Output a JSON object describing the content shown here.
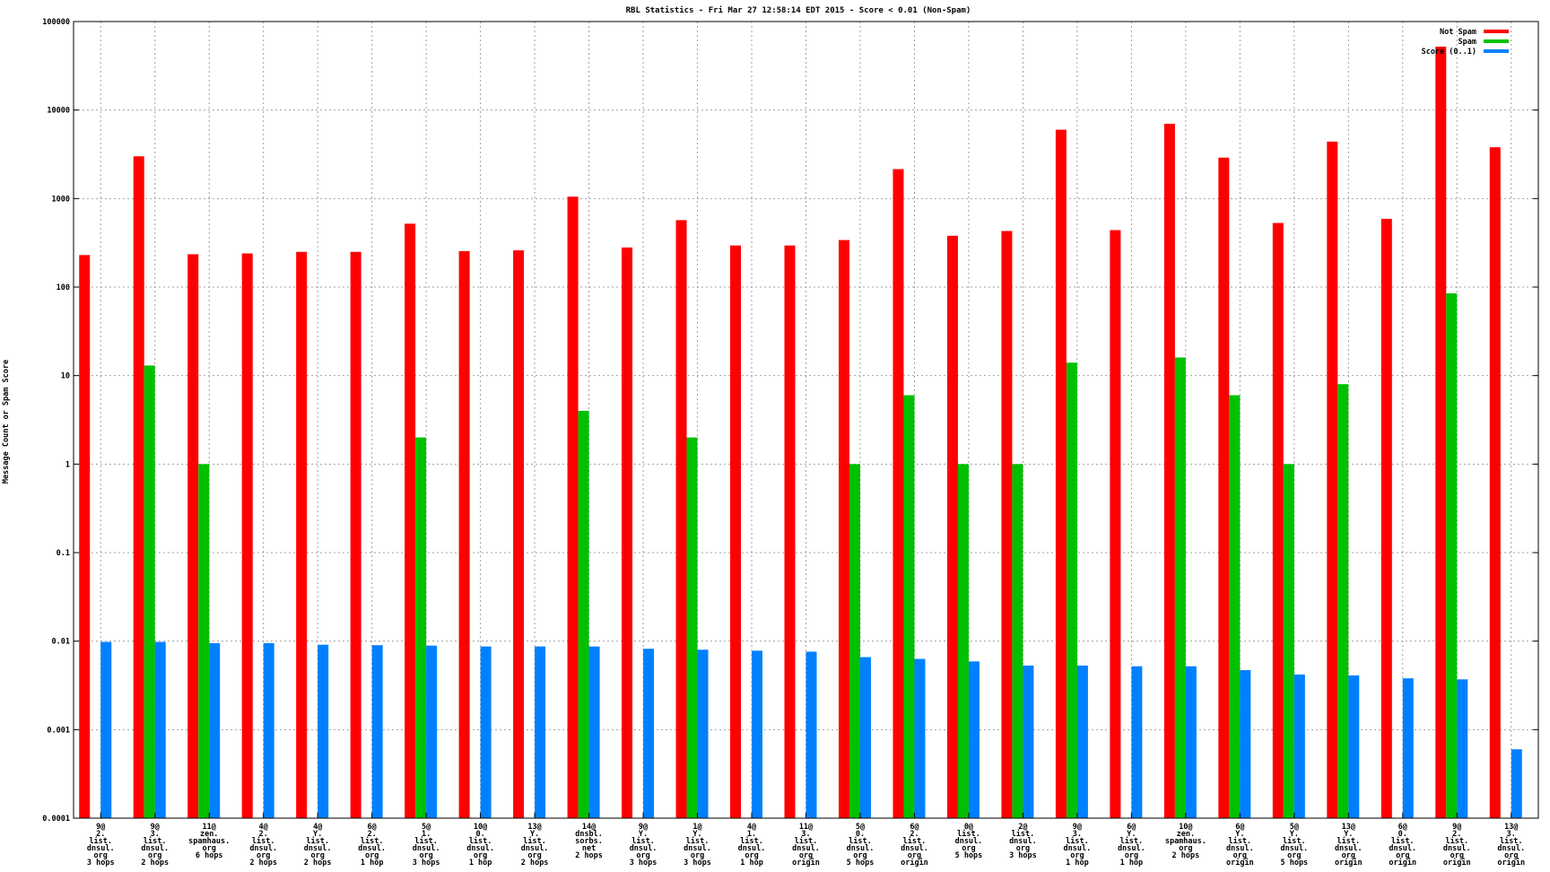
{
  "chart_data": {
    "type": "bar",
    "title": "RBL Statistics - Fri Mar 27 12:58:14 EDT 2015 - Score < 0.01 (Non-Spam)",
    "ylabel": "Message Count or Spam Score",
    "y_scale": "log",
    "ylim": [
      0.0001,
      100000
    ],
    "yticks": [
      "0.0001",
      "0.001",
      "0.01",
      "0.1",
      "1",
      "10",
      "100",
      "1000",
      "10000",
      "100000"
    ],
    "grid": true,
    "legend_position": "top-right",
    "categories": [
      [
        "9@",
        "2.",
        "list.",
        "dnsul.",
        "org",
        "3 hops"
      ],
      [
        "9@",
        "3.",
        "list.",
        "dnsul.",
        "org",
        "2 hops"
      ],
      [
        "11@",
        "zen.",
        "spamhaus.",
        "org",
        "6 hops"
      ],
      [
        "4@",
        "2.",
        "list.",
        "dnsul.",
        "org",
        "2 hops"
      ],
      [
        "4@",
        "Y.",
        "list.",
        "dnsul.",
        "org",
        "2 hops"
      ],
      [
        "6@",
        "2.",
        "list.",
        "dnsul.",
        "org",
        "1 hop"
      ],
      [
        "5@",
        "1.",
        "list.",
        "dnsul.",
        "org",
        "3 hops"
      ],
      [
        "10@",
        "0.",
        "list.",
        "dnsul.",
        "org",
        "1 hop"
      ],
      [
        "13@",
        "Y.",
        "list.",
        "dnsul.",
        "org",
        "2 hops"
      ],
      [
        "14@",
        "dnsbl.",
        "sorbs.",
        "net",
        "2 hops"
      ],
      [
        "9@",
        "Y.",
        "list.",
        "dnsul.",
        "org",
        "3 hops"
      ],
      [
        "1@",
        "Y.",
        "list.",
        "dnsul.",
        "org",
        "3 hops"
      ],
      [
        "4@",
        "1.",
        "list.",
        "dnsul.",
        "org",
        "1 hop"
      ],
      [
        "11@",
        "3.",
        "list.",
        "dnsul.",
        "org",
        "origin"
      ],
      [
        "5@",
        "0.",
        "list.",
        "dnsul.",
        "org",
        "5 hops"
      ],
      [
        "6@",
        "2.",
        "list.",
        "dnsul.",
        "org",
        "origin"
      ],
      [
        "0@",
        "list.",
        "dnsul.",
        "org",
        "5 hops"
      ],
      [
        "2@",
        "list.",
        "dnsul.",
        "org",
        "3 hops"
      ],
      [
        "9@",
        "3.",
        "list.",
        "dnsul.",
        "org",
        "1 hop"
      ],
      [
        "6@",
        "Y.",
        "list.",
        "dnsul.",
        "org",
        "1 hop"
      ],
      [
        "10@",
        "zen.",
        "spamhaus.",
        "org",
        "2 hops"
      ],
      [
        "6@",
        "Y.",
        "list.",
        "dnsul.",
        "org",
        "origin"
      ],
      [
        "5@",
        "Y.",
        "list.",
        "dnsul.",
        "org",
        "5 hops"
      ],
      [
        "13@",
        "Y.",
        "list.",
        "dnsul.",
        "org",
        "origin"
      ],
      [
        "6@",
        "0.",
        "list.",
        "dnsul.",
        "org",
        "origin"
      ],
      [
        "9@",
        "2.",
        "list.",
        "dnsul.",
        "org",
        "origin"
      ],
      [
        "13@",
        "3.",
        "list.",
        "dnsul.",
        "org",
        "origin"
      ]
    ],
    "series": [
      {
        "name": "Not Spam",
        "color": "#ff0000",
        "values": [
          230,
          3000,
          235,
          240,
          250,
          250,
          520,
          255,
          260,
          1050,
          280,
          570,
          295,
          295,
          340,
          2150,
          380,
          430,
          6000,
          440,
          7000,
          2900,
          530,
          4400,
          590,
          52000,
          3800
        ]
      },
      {
        "name": "Spam",
        "color": "#00c000",
        "values": [
          0,
          13,
          1,
          0,
          0,
          0,
          2,
          0,
          0,
          4,
          0,
          2,
          0,
          0,
          1,
          6,
          1,
          1,
          14,
          0,
          16,
          6,
          1,
          8,
          0,
          85,
          0
        ]
      },
      {
        "name": "Score (0..1)",
        "color": "#0080ff",
        "values": [
          0.0098,
          0.0098,
          0.0095,
          0.0095,
          0.0091,
          0.009,
          0.0089,
          0.0087,
          0.0087,
          0.0087,
          0.0082,
          0.008,
          0.0078,
          0.0076,
          0.0066,
          0.0063,
          0.0059,
          0.0053,
          0.0053,
          0.0052,
          0.0052,
          0.0047,
          0.0042,
          0.0041,
          0.0038,
          0.0037,
          0.0006
        ]
      }
    ]
  }
}
